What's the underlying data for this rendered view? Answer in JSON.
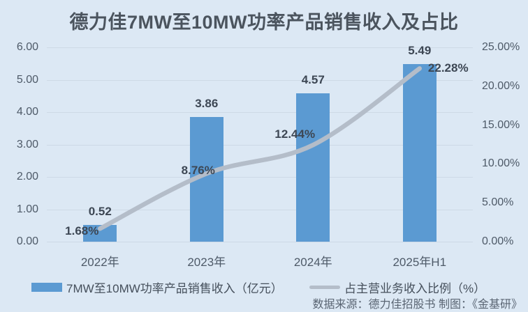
{
  "title": "德力佳7MW至10MW功率产品销售收入及占比",
  "source_note": "数据来源：德力佳招股书  制图：《金基研》",
  "legend": {
    "bar_label": "7MW至10MW功率产品销售收入（亿元）",
    "line_label": "占主营业务收入比例（%）"
  },
  "colors": {
    "background": "#dce8f4",
    "bar": "#5b9ad2",
    "line": "#b4bdc9",
    "gridline": "#cdd9e6",
    "title_text": "#4b545e",
    "axis_text": "#4e5a68",
    "data_label_text": "#3d4754"
  },
  "chart_data": {
    "type": "bar",
    "subtype": "bar-line-combo",
    "title": "德力佳7MW至10MW功率产品销售收入及占比",
    "categories": [
      "2022年",
      "2023年",
      "2024年",
      "2025年H1"
    ],
    "series": [
      {
        "name": "7MW至10MW功率产品销售收入（亿元）",
        "type": "bar",
        "axis": "left",
        "values": [
          0.52,
          3.86,
          4.57,
          5.49
        ],
        "data_labels": [
          "0.52",
          "3.86",
          "4.57",
          "5.49"
        ]
      },
      {
        "name": "占主营业务收入比例（%）",
        "type": "line",
        "axis": "right",
        "values": [
          1.68,
          8.76,
          12.44,
          22.28
        ],
        "data_labels": [
          "1.68%",
          "8.76%",
          "12.44%",
          "22.28%"
        ]
      }
    ],
    "left_axis": {
      "min": 0,
      "max": 6,
      "ticks": [
        "0.00",
        "1.00",
        "2.00",
        "3.00",
        "4.00",
        "5.00",
        "6.00"
      ]
    },
    "right_axis": {
      "min": 0,
      "max": 25,
      "ticks": [
        "0.00%",
        "5.00%",
        "10.00%",
        "15.00%",
        "20.00%",
        "25.00%"
      ]
    },
    "grid": true,
    "legend_position": "bottom"
  }
}
